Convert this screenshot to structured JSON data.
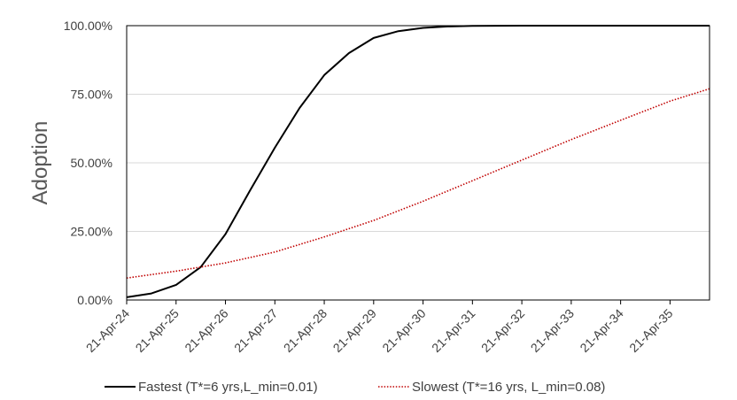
{
  "chart_data": {
    "type": "line",
    "title": "",
    "xlabel": "",
    "ylabel": "Adoption",
    "x_tick_labels": [
      "21-Apr-24",
      "21-Apr-25",
      "21-Apr-26",
      "21-Apr-27",
      "21-Apr-28",
      "21-Apr-29",
      "21-Apr-30",
      "21-Apr-31",
      "21-Apr-32",
      "21-Apr-33",
      "21-Apr-34",
      "21-Apr-35"
    ],
    "x_tick_years": [
      2024,
      2025,
      2026,
      2027,
      2028,
      2029,
      2030,
      2031,
      2032,
      2033,
      2034,
      2035
    ],
    "xlim": [
      2024.0,
      2035.8
    ],
    "y_tick_labels": [
      "0.00%",
      "25.00%",
      "50.00%",
      "75.00%",
      "100.00%"
    ],
    "y_tick_values": [
      0,
      25,
      50,
      75,
      100
    ],
    "ylim": [
      0,
      100
    ],
    "grid": {
      "horizontal": true,
      "vertical": false
    },
    "legend": "bottom",
    "series": [
      {
        "name": "Fastest (T*=6 yrs,L_min=0.01)",
        "color": "#000000",
        "style": "solid",
        "x": [
          2024.0,
          2024.5,
          2025.0,
          2025.5,
          2026.0,
          2026.5,
          2027.0,
          2027.5,
          2028.0,
          2028.5,
          2029.0,
          2029.5,
          2030.0,
          2030.5,
          2031.0,
          2032.0,
          2033.0,
          2034.0,
          2035.0,
          2035.8
        ],
        "y": [
          1.0,
          2.4,
          5.5,
          12.0,
          24.0,
          40.0,
          55.5,
          70.0,
          82.0,
          90.0,
          95.5,
          98.0,
          99.2,
          99.7,
          99.9,
          100.0,
          100.0,
          100.0,
          100.0,
          100.0
        ]
      },
      {
        "name": "Slowest (T*=16 yrs, L_min=0.08)",
        "color": "#c00000",
        "style": "dotted",
        "x": [
          2024.0,
          2025.0,
          2026.0,
          2027.0,
          2028.0,
          2029.0,
          2030.0,
          2031.0,
          2032.0,
          2033.0,
          2034.0,
          2035.0,
          2035.8
        ],
        "y": [
          8.0,
          10.5,
          13.5,
          17.5,
          23.0,
          29.0,
          36.0,
          43.5,
          51.0,
          58.5,
          65.5,
          72.5,
          77.0
        ]
      }
    ]
  }
}
